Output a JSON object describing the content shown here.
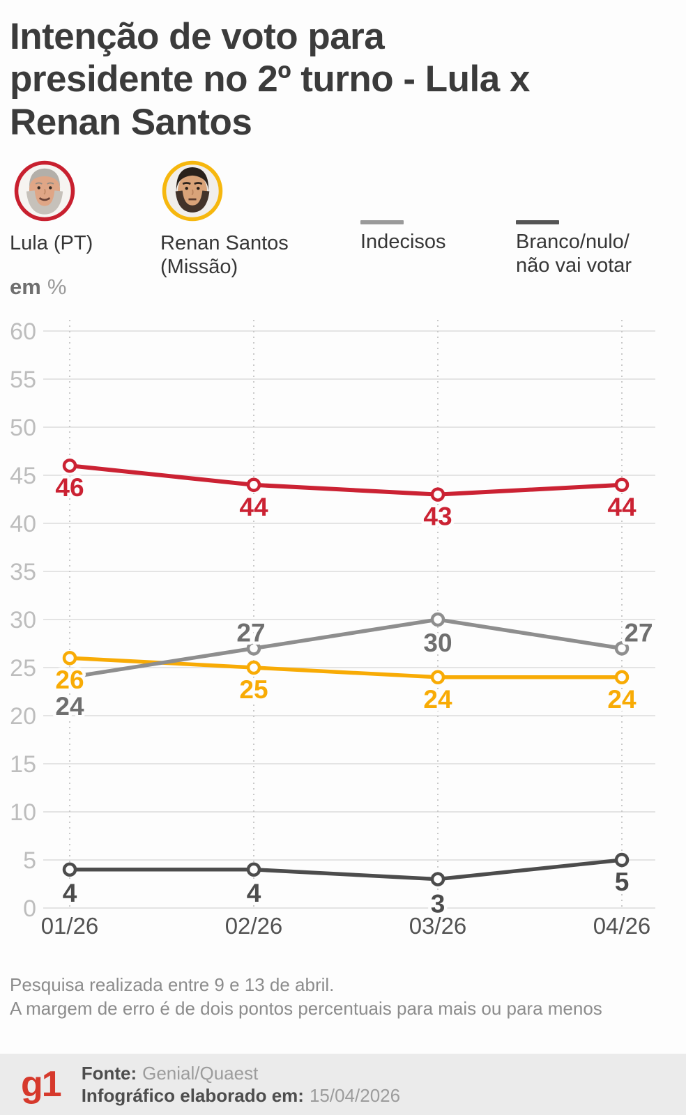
{
  "title_lines": [
    "Intenção de voto para",
    "presidente no 2º turno - Lula x",
    "Renan Santos"
  ],
  "unit": {
    "em": "em",
    "pct": "%"
  },
  "legend": [
    {
      "label": "Lula (PT)",
      "lines": [
        "Lula (PT)"
      ],
      "color": "#cb2233",
      "marker": "avatar"
    },
    {
      "label": "Renan Santos (Missão)",
      "lines": [
        "Renan Santos",
        "(Missão)"
      ],
      "color": "#f6b70e",
      "marker": "avatar"
    },
    {
      "label": "Indecisos",
      "lines": [
        "Indecisos"
      ],
      "color": "#9a9a9a",
      "marker": "line"
    },
    {
      "label": "Branco/nulo/não vai votar",
      "lines": [
        "Branco/nulo/",
        "não vai votar"
      ],
      "color": "#555555",
      "marker": "line"
    }
  ],
  "chart_data": {
    "type": "line",
    "x": [
      "01/26",
      "02/26",
      "03/26",
      "04/26"
    ],
    "series": [
      {
        "name": "Lula (PT)",
        "color": "#cb2233",
        "values": [
          46,
          44,
          43,
          44
        ]
      },
      {
        "name": "Renan Santos (Missão)",
        "color": "#f8ab05",
        "values": [
          26,
          25,
          24,
          24
        ]
      },
      {
        "name": "Indecisos",
        "color": "#8e8e8e",
        "label_color": "#6f6f6f",
        "values": [
          24,
          27,
          30,
          27
        ]
      },
      {
        "name": "Branco/nulo/não vai votar",
        "color": "#4c4c4c",
        "values": [
          4,
          4,
          3,
          5
        ]
      }
    ],
    "title": "Intenção de voto para presidente no 2º turno - Lula x Renan Santos",
    "xlabel": "",
    "ylabel": "em %",
    "ylim": [
      0,
      60
    ],
    "ytick_step": 5,
    "grid": true,
    "legend_position": "top"
  },
  "notes": [
    "Pesquisa realizada entre 9 e 13 de abril.",
    "A margem de erro é de dois pontos percentuais para mais ou para menos"
  ],
  "footer": {
    "logo_text": "g1",
    "source_label": "Fonte:",
    "source_value": "Genial/Quaest",
    "info_label": "Infográfico elaborado em:",
    "info_value": "15/04/2026"
  }
}
